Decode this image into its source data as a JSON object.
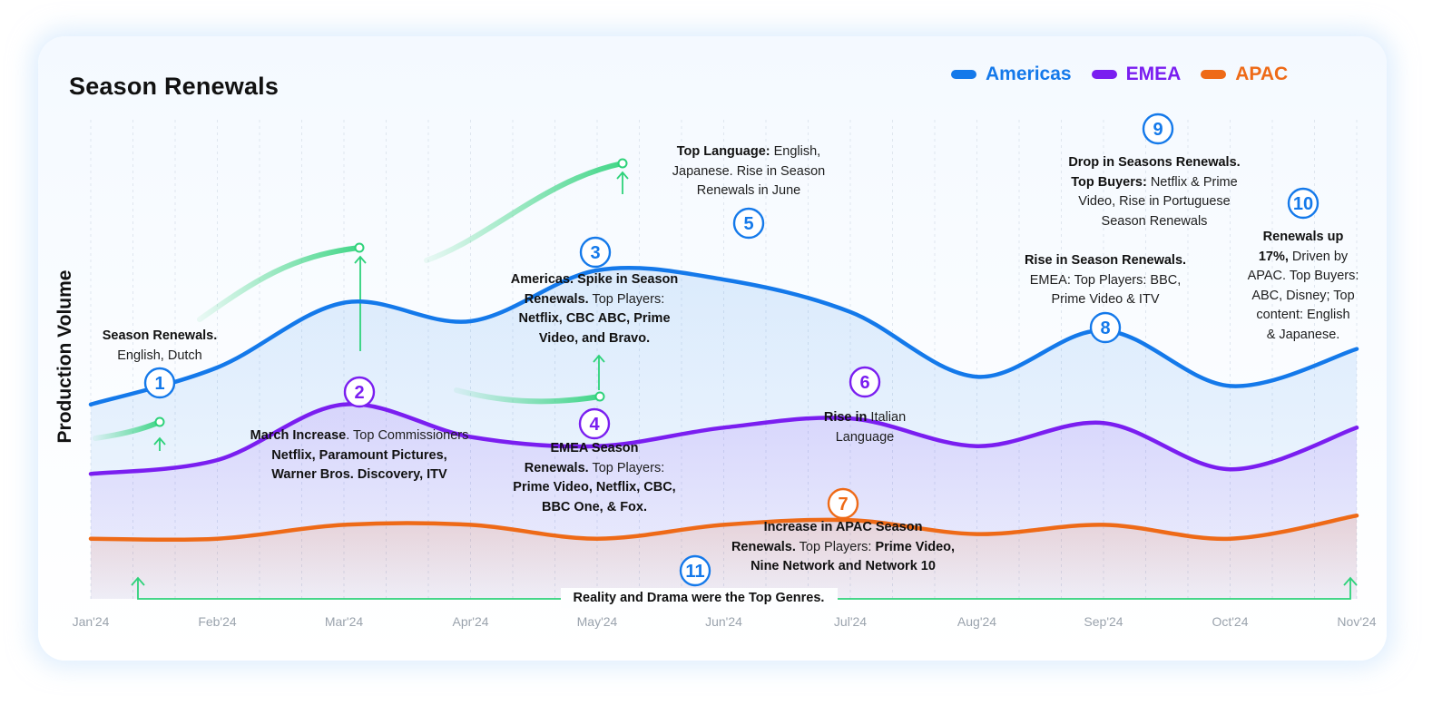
{
  "title": "Season Renewals",
  "colors": {
    "americas": "#1479ea",
    "emea": "#7a1ef0",
    "apac": "#ee6a17",
    "green": "#2ed27a"
  },
  "chart_data": {
    "type": "line",
    "title": "Season Renewals",
    "xlabel": "",
    "ylabel": "Production Volume",
    "x": [
      "Jan'24",
      "Feb'24",
      "Mar'24",
      "Apr'24",
      "May'24",
      "Jun'24",
      "Jul'24",
      "Aug'24",
      "Sep'24",
      "Oct'24",
      "Nov'24"
    ],
    "legend_position": "top-right",
    "y_ticks_shown": false,
    "ylim": [
      0,
      100
    ],
    "series": [
      {
        "name": "Americas",
        "color": "#1479ea",
        "values": [
          42,
          50,
          64,
          60,
          71,
          69,
          62,
          48,
          58,
          46,
          54
        ]
      },
      {
        "name": "EMEA",
        "color": "#7a1ef0",
        "values": [
          27,
          30,
          42,
          35,
          33,
          37,
          39,
          33,
          38,
          28,
          37
        ]
      },
      {
        "name": "APAC",
        "color": "#ee6a17",
        "values": [
          13,
          13,
          16,
          16,
          13,
          16,
          17,
          14,
          16,
          13,
          18
        ]
      }
    ],
    "annotations": [
      {
        "number": "1",
        "series": "Americas",
        "month": "Jan'24",
        "lines": [
          [
            [
              "b",
              "Season Renewals."
            ]
          ],
          [
            [
              "t",
              "English, Dutch"
            ]
          ]
        ]
      },
      {
        "number": "2",
        "series": "EMEA",
        "month": "Mar'24",
        "lines": [
          [
            [
              "b",
              "March Increase"
            ],
            [
              "t",
              ". Top Commissioners"
            ]
          ],
          [
            [
              "b",
              "Netflix, Paramount Pictures,"
            ]
          ],
          [
            [
              "b",
              "Warner Bros. Discovery, ITV"
            ]
          ]
        ]
      },
      {
        "number": "3",
        "series": "Americas",
        "month": "May'24",
        "lines": [
          [
            [
              "b",
              "Americas. Spike in Season"
            ]
          ],
          [
            [
              "b",
              "Renewals."
            ],
            [
              "t",
              " Top Players:"
            ]
          ],
          [
            [
              "b",
              "Netflix, CBC ABC, Prime"
            ]
          ],
          [
            [
              "b",
              "Video, and Bravo."
            ]
          ]
        ]
      },
      {
        "number": "4",
        "series": "EMEA",
        "month": "May'24",
        "lines": [
          [
            [
              "b",
              "EMEA Season"
            ]
          ],
          [
            [
              "b",
              "Renewals."
            ],
            [
              "t",
              " Top Players:"
            ]
          ],
          [
            [
              "b",
              "Prime Video, Netflix, CBC,"
            ]
          ],
          [
            [
              "b",
              "BBC One, & Fox."
            ]
          ]
        ]
      },
      {
        "number": "5",
        "series": "Americas",
        "month": "Jun'24",
        "lines": [
          [
            [
              "b",
              "Top Language:"
            ],
            [
              "t",
              " English,"
            ]
          ],
          [
            [
              "t",
              "Japanese. Rise in Season"
            ]
          ],
          [
            [
              "t",
              "Renewals in June"
            ]
          ]
        ]
      },
      {
        "number": "6",
        "series": "EMEA",
        "month": "Jul'24",
        "lines": [
          [
            [
              "b",
              "Rise in"
            ],
            [
              "t",
              " Italian"
            ]
          ],
          [
            [
              "t",
              "Language"
            ]
          ]
        ]
      },
      {
        "number": "7",
        "series": "APAC",
        "month": "Jul'24",
        "lines": [
          [
            [
              "b",
              "Increase in APAC Season"
            ]
          ],
          [
            [
              "b",
              "Renewals."
            ],
            [
              "t",
              " Top Players: "
            ],
            [
              "b",
              "Prime Video,"
            ]
          ],
          [
            [
              "b",
              "Nine Network and Network 10"
            ]
          ]
        ]
      },
      {
        "number": "8",
        "series": "Americas",
        "month": "Sep'24",
        "lines": [
          [
            [
              "b",
              "Rise in Season Renewals."
            ]
          ],
          [
            [
              "t",
              "EMEA:  Top Players: BBC,"
            ]
          ],
          [
            [
              "t",
              "Prime Video & ITV"
            ]
          ]
        ]
      },
      {
        "number": "9",
        "series": "Americas",
        "month": "Sep'24",
        "lines": [
          [
            [
              "b",
              "Drop in Seasons Renewals."
            ]
          ],
          [
            [
              "b",
              "Top Buyers:"
            ],
            [
              "t",
              " Netflix & Prime"
            ]
          ],
          [
            [
              "t",
              "Video, Rise in Portuguese"
            ]
          ],
          [
            [
              "t",
              "Season Renewals"
            ]
          ]
        ]
      },
      {
        "number": "10",
        "series": "Americas",
        "month": "Nov'24",
        "lines": [
          [
            [
              "b",
              "Renewals up"
            ]
          ],
          [
            [
              "b",
              "17%,"
            ],
            [
              "t",
              " Driven by"
            ]
          ],
          [
            [
              "t",
              "APAC. Top Buyers:"
            ]
          ],
          [
            [
              "t",
              "ABC, Disney; Top"
            ]
          ],
          [
            [
              "t",
              "content: English"
            ]
          ],
          [
            [
              "t",
              "& Japanese."
            ]
          ]
        ]
      },
      {
        "number": "11",
        "series": "All",
        "month": "Jan'24 - Nov'24",
        "lines": [
          [
            [
              "b",
              "Reality and Drama were the Top Genres."
            ]
          ]
        ]
      }
    ]
  }
}
